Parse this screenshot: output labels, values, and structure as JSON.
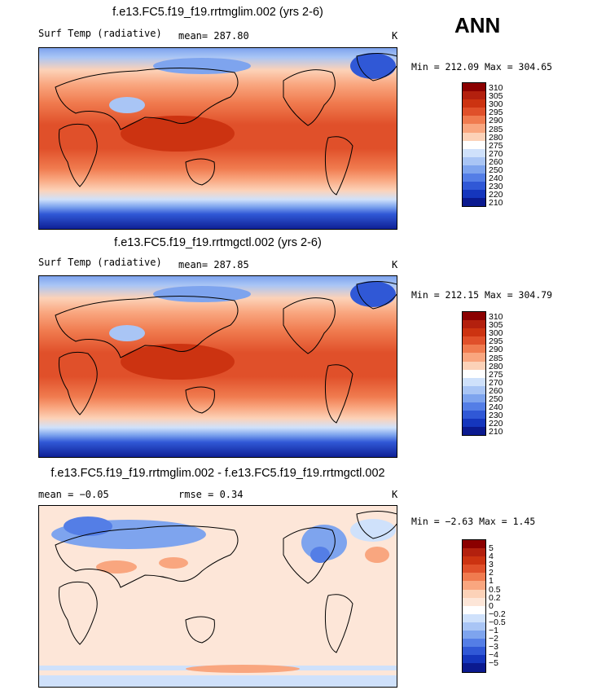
{
  "season": "ANN",
  "panels": [
    {
      "title": "f.e13.FC5.f19_f19.rrtmglim.002 (yrs 2-6)",
      "left_label": "Surf Temp (radiative)",
      "stat_label": "mean= 287.80",
      "stat2_label": "",
      "units": "K",
      "minmax_label": "Min = 212.09 Max = 304.65",
      "colorbar_levels": [
        "310",
        "305",
        "300",
        "295",
        "290",
        "285",
        "280",
        "275",
        "270",
        "260",
        "250",
        "240",
        "230",
        "220",
        "210"
      ],
      "colorbar_colors": [
        "#8b0000",
        "#b3200e",
        "#cc3311",
        "#e0502a",
        "#f07b4f",
        "#f9a67f",
        "#fcd2b8",
        "#ffffff",
        "#cfe1fb",
        "#a9c5f5",
        "#7ea4ee",
        "#547ee6",
        "#3058d6",
        "#1536bd",
        "#0b1a8f"
      ]
    },
    {
      "title": "f.e13.FC5.f19_f19.rrtmgctl.002 (yrs 2-6)",
      "left_label": "Surf Temp (radiative)",
      "stat_label": "mean= 287.85",
      "stat2_label": "",
      "units": "K",
      "minmax_label": "Min = 212.15 Max = 304.79",
      "colorbar_levels": [
        "310",
        "305",
        "300",
        "295",
        "290",
        "285",
        "280",
        "275",
        "270",
        "260",
        "250",
        "240",
        "230",
        "220",
        "210"
      ],
      "colorbar_colors": [
        "#8b0000",
        "#b3200e",
        "#cc3311",
        "#e0502a",
        "#f07b4f",
        "#f9a67f",
        "#fcd2b8",
        "#ffffff",
        "#cfe1fb",
        "#a9c5f5",
        "#7ea4ee",
        "#547ee6",
        "#3058d6",
        "#1536bd",
        "#0b1a8f"
      ]
    },
    {
      "title": "f.e13.FC5.f19_f19.rrtmglim.002 - f.e13.FC5.f19_f19.rrtmgctl.002",
      "left_label": "mean = −0.05",
      "stat_label": "rmse = 0.34",
      "stat2_label": "",
      "units": "K",
      "minmax_label": "Min = −2.63 Max = 1.45",
      "colorbar_levels": [
        "5",
        "4",
        "3",
        "2",
        "1",
        "0.5",
        "0.2",
        "0",
        "−0.2",
        "−0.5",
        "−1",
        "−2",
        "−3",
        "−4",
        "−5"
      ],
      "colorbar_colors": [
        "#8b0000",
        "#b3200e",
        "#cc3311",
        "#e0502a",
        "#f07b4f",
        "#f9a67f",
        "#fcd2b8",
        "#fde6d8",
        "#ffffff",
        "#cfe1fb",
        "#a9c5f5",
        "#7ea4ee",
        "#547ee6",
        "#3058d6",
        "#1536bd",
        "#0b1a8f"
      ]
    }
  ]
}
